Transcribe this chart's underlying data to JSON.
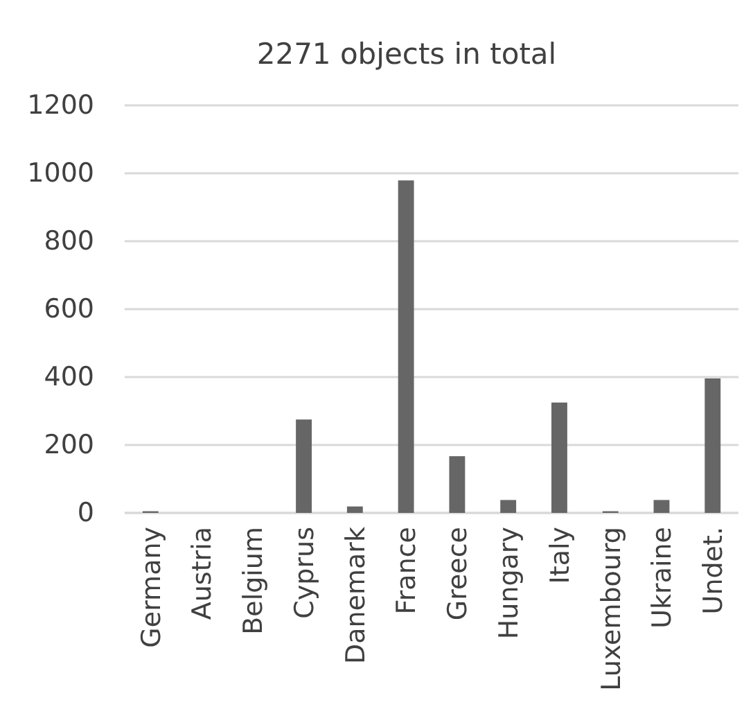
{
  "chart_data": {
    "type": "bar",
    "title": "2271 objects in total",
    "categories": [
      "Germany",
      "Austria",
      "Belgium",
      "Cyprus",
      "Danemark",
      "France",
      "Greece",
      "Hungary",
      "Italy",
      "Luxembourg",
      "Ukraine",
      "Undet."
    ],
    "values": [
      5,
      0,
      0,
      275,
      19,
      979,
      167,
      38,
      325,
      5,
      38,
      396
    ],
    "color": "#666666",
    "ylim": [
      0,
      1200
    ],
    "yticks": [
      0,
      200,
      400,
      600,
      800,
      1000,
      1200
    ],
    "grid": "y"
  }
}
